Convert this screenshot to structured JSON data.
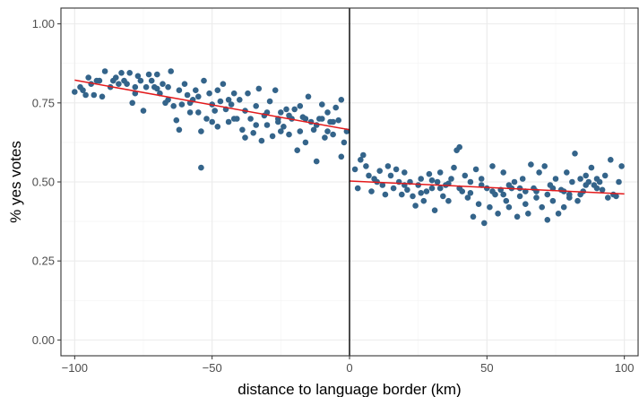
{
  "chart_data": {
    "type": "scatter",
    "title": "",
    "xlabel": "distance to language border (km)",
    "ylabel": "% yes votes",
    "xlim": [
      -105,
      105
    ],
    "ylim": [
      -0.05,
      1.05
    ],
    "x_ticks": [
      -100,
      -50,
      0,
      50,
      100
    ],
    "x_tick_labels": [
      "−100",
      "−50",
      "0",
      "50",
      "100"
    ],
    "y_ticks": [
      0,
      0.25,
      0.5,
      0.75,
      1
    ],
    "y_tick_labels": [
      "0.00",
      "0.25",
      "0.50",
      "0.75",
      "1.00"
    ],
    "grid": true,
    "vline_x": 0,
    "colors": {
      "points": "#34648a",
      "fit": "#e31a1c",
      "vline": "#000000",
      "panel_border": "#333333"
    },
    "fit_lines": [
      {
        "x": [
          -100,
          0
        ],
        "y": [
          0.822,
          0.665
        ]
      },
      {
        "x": [
          0,
          100
        ],
        "y": [
          0.503,
          0.462
        ]
      }
    ],
    "series": [
      {
        "points": [
          [
            -100,
            0.785
          ],
          [
            -98,
            0.8
          ],
          [
            -97,
            0.79
          ],
          [
            -96,
            0.775
          ],
          [
            -95,
            0.83
          ],
          [
            -94,
            0.81
          ],
          [
            -93,
            0.775
          ],
          [
            -92,
            0.82
          ],
          [
            -91,
            0.82
          ],
          [
            -90,
            0.77
          ],
          [
            -89,
            0.85
          ],
          [
            -87,
            0.8
          ],
          [
            -85,
            0.83
          ],
          [
            -84,
            0.81
          ],
          [
            -83,
            0.845
          ],
          [
            -82,
            0.82
          ],
          [
            -81,
            0.81
          ],
          [
            -80,
            0.845
          ],
          [
            -79,
            0.75
          ],
          [
            -78,
            0.8
          ],
          [
            -77,
            0.835
          ],
          [
            -76,
            0.82
          ],
          [
            -75,
            0.725
          ],
          [
            -74,
            0.8
          ],
          [
            -73,
            0.84
          ],
          [
            -72,
            0.82
          ],
          [
            -71,
            0.8
          ],
          [
            -70,
            0.84
          ],
          [
            -69,
            0.78
          ],
          [
            -68,
            0.81
          ],
          [
            -67,
            0.75
          ],
          [
            -66,
            0.8
          ],
          [
            -65,
            0.85
          ],
          [
            -64,
            0.74
          ],
          [
            -63,
            0.695
          ],
          [
            -62,
            0.79
          ],
          [
            -61,
            0.745
          ],
          [
            -60,
            0.81
          ],
          [
            -59,
            0.775
          ],
          [
            -58,
            0.75
          ],
          [
            -57,
            0.76
          ],
          [
            -56,
            0.79
          ],
          [
            -55,
            0.72
          ],
          [
            -54,
            0.66
          ],
          [
            -53,
            0.82
          ],
          [
            -52,
            0.7
          ],
          [
            -51,
            0.78
          ],
          [
            -50,
            0.745
          ],
          [
            -49,
            0.725
          ],
          [
            -48,
            0.79
          ],
          [
            -47,
            0.755
          ],
          [
            -46,
            0.81
          ],
          [
            -45,
            0.73
          ],
          [
            -44,
            0.69
          ],
          [
            -43,
            0.745
          ],
          [
            -42,
            0.78
          ],
          [
            -41,
            0.7
          ],
          [
            -40,
            0.76
          ],
          [
            -39,
            0.665
          ],
          [
            -38,
            0.725
          ],
          [
            -37,
            0.78
          ],
          [
            -36,
            0.7
          ],
          [
            -35,
            0.655
          ],
          [
            -34,
            0.74
          ],
          [
            -33,
            0.795
          ],
          [
            -32,
            0.63
          ],
          [
            -31,
            0.71
          ],
          [
            -30,
            0.68
          ],
          [
            -29,
            0.755
          ],
          [
            -28,
            0.645
          ],
          [
            -27,
            0.79
          ],
          [
            -26,
            0.7
          ],
          [
            -25,
            0.72
          ],
          [
            -24,
            0.675
          ],
          [
            -23,
            0.73
          ],
          [
            -22,
            0.65
          ],
          [
            -21,
            0.7
          ],
          [
            -20,
            0.73
          ],
          [
            -19,
            0.6
          ],
          [
            -18,
            0.66
          ],
          [
            -17,
            0.705
          ],
          [
            -16,
            0.625
          ],
          [
            -15,
            0.77
          ],
          [
            -14,
            0.69
          ],
          [
            -13,
            0.665
          ],
          [
            -12,
            0.565
          ],
          [
            -11,
            0.7
          ],
          [
            -10,
            0.745
          ],
          [
            -9,
            0.64
          ],
          [
            -8,
            0.72
          ],
          [
            -7,
            0.69
          ],
          [
            -6,
            0.65
          ],
          [
            -5,
            0.735
          ],
          [
            -4,
            0.695
          ],
          [
            -3,
            0.58
          ],
          [
            -2,
            0.625
          ],
          [
            -1,
            0.66
          ],
          [
            -3,
            0.76
          ],
          [
            -54,
            0.545
          ],
          [
            -62,
            0.665
          ],
          [
            -55,
            0.77
          ],
          [
            -70,
            0.795
          ],
          [
            -48,
            0.675
          ],
          [
            -44,
            0.76
          ],
          [
            -38,
            0.64
          ],
          [
            -30,
            0.72
          ],
          [
            -25,
            0.66
          ],
          [
            -18,
            0.74
          ],
          [
            -12,
            0.68
          ],
          [
            -8,
            0.66
          ],
          [
            -86,
            0.82
          ],
          [
            -78,
            0.78
          ],
          [
            -66,
            0.76
          ],
          [
            -58,
            0.72
          ],
          [
            -50,
            0.69
          ],
          [
            -42,
            0.7
          ],
          [
            -34,
            0.68
          ],
          [
            -26,
            0.69
          ],
          [
            -22,
            0.71
          ],
          [
            -16,
            0.7
          ],
          [
            -10,
            0.7
          ],
          [
            -6,
            0.69
          ],
          [
            2,
            0.54
          ],
          [
            3,
            0.48
          ],
          [
            4,
            0.57
          ],
          [
            5,
            0.585
          ],
          [
            6,
            0.55
          ],
          [
            7,
            0.52
          ],
          [
            8,
            0.47
          ],
          [
            9,
            0.51
          ],
          [
            10,
            0.5
          ],
          [
            11,
            0.535
          ],
          [
            12,
            0.49
          ],
          [
            13,
            0.46
          ],
          [
            14,
            0.55
          ],
          [
            15,
            0.52
          ],
          [
            16,
            0.48
          ],
          [
            17,
            0.54
          ],
          [
            18,
            0.5
          ],
          [
            19,
            0.46
          ],
          [
            20,
            0.53
          ],
          [
            21,
            0.475
          ],
          [
            22,
            0.5
          ],
          [
            23,
            0.455
          ],
          [
            24,
            0.425
          ],
          [
            25,
            0.49
          ],
          [
            26,
            0.51
          ],
          [
            27,
            0.44
          ],
          [
            28,
            0.47
          ],
          [
            29,
            0.525
          ],
          [
            30,
            0.48
          ],
          [
            31,
            0.41
          ],
          [
            32,
            0.5
          ],
          [
            33,
            0.53
          ],
          [
            34,
            0.455
          ],
          [
            35,
            0.49
          ],
          [
            36,
            0.44
          ],
          [
            37,
            0.51
          ],
          [
            38,
            0.545
          ],
          [
            39,
            0.6
          ],
          [
            40,
            0.61
          ],
          [
            41,
            0.47
          ],
          [
            42,
            0.52
          ],
          [
            43,
            0.45
          ],
          [
            44,
            0.5
          ],
          [
            45,
            0.39
          ],
          [
            46,
            0.54
          ],
          [
            47,
            0.43
          ],
          [
            48,
            0.49
          ],
          [
            49,
            0.37
          ],
          [
            50,
            0.48
          ],
          [
            51,
            0.42
          ],
          [
            52,
            0.55
          ],
          [
            53,
            0.46
          ],
          [
            54,
            0.4
          ],
          [
            55,
            0.475
          ],
          [
            56,
            0.53
          ],
          [
            57,
            0.44
          ],
          [
            58,
            0.42
          ],
          [
            59,
            0.48
          ],
          [
            60,
            0.5
          ],
          [
            61,
            0.39
          ],
          [
            62,
            0.455
          ],
          [
            63,
            0.51
          ],
          [
            64,
            0.43
          ],
          [
            65,
            0.4
          ],
          [
            66,
            0.555
          ],
          [
            67,
            0.48
          ],
          [
            68,
            0.45
          ],
          [
            69,
            0.53
          ],
          [
            70,
            0.42
          ],
          [
            71,
            0.55
          ],
          [
            72,
            0.38
          ],
          [
            73,
            0.49
          ],
          [
            74,
            0.44
          ],
          [
            75,
            0.51
          ],
          [
            76,
            0.4
          ],
          [
            77,
            0.475
          ],
          [
            78,
            0.42
          ],
          [
            79,
            0.53
          ],
          [
            80,
            0.45
          ],
          [
            81,
            0.5
          ],
          [
            82,
            0.59
          ],
          [
            83,
            0.44
          ],
          [
            84,
            0.51
          ],
          [
            85,
            0.47
          ],
          [
            86,
            0.52
          ],
          [
            87,
            0.5
          ],
          [
            88,
            0.545
          ],
          [
            89,
            0.49
          ],
          [
            90,
            0.51
          ],
          [
            91,
            0.5
          ],
          [
            92,
            0.475
          ],
          [
            93,
            0.52
          ],
          [
            94,
            0.45
          ],
          [
            95,
            0.57
          ],
          [
            96,
            0.46
          ],
          [
            97,
            0.455
          ],
          [
            98,
            0.5
          ],
          [
            99,
            0.55
          ],
          [
            33,
            0.48
          ],
          [
            36,
            0.495
          ],
          [
            44,
            0.465
          ],
          [
            48,
            0.51
          ],
          [
            52,
            0.47
          ],
          [
            58,
            0.49
          ],
          [
            62,
            0.48
          ],
          [
            68,
            0.47
          ],
          [
            74,
            0.48
          ],
          [
            80,
            0.46
          ],
          [
            86,
            0.49
          ],
          [
            20,
            0.49
          ],
          [
            26,
            0.465
          ],
          [
            30,
            0.505
          ],
          [
            40,
            0.48
          ],
          [
            56,
            0.46
          ],
          [
            64,
            0.47
          ],
          [
            72,
            0.46
          ],
          [
            78,
            0.47
          ],
          [
            84,
            0.46
          ],
          [
            90,
            0.48
          ]
        ]
      }
    ]
  }
}
